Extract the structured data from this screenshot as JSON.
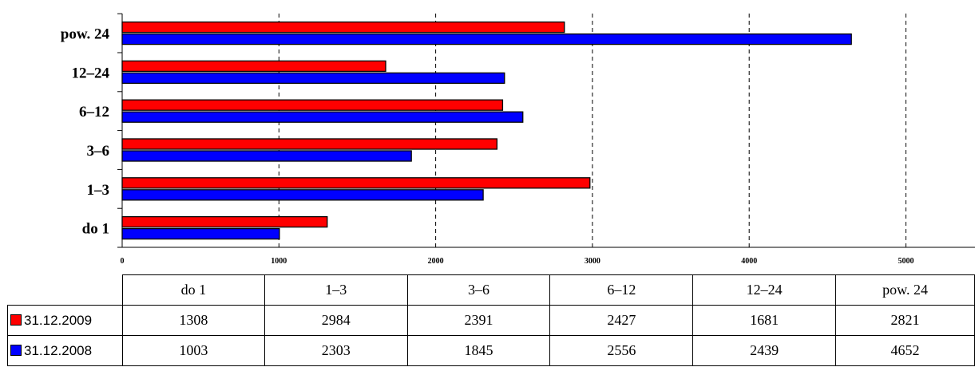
{
  "chart_data": {
    "type": "bar",
    "orientation": "horizontal",
    "categories": [
      "do 1",
      "1–3",
      "3–6",
      "6–12",
      "12–24",
      "pow. 24"
    ],
    "series": [
      {
        "name": "31.12.2009",
        "color": "#ff0000",
        "values": [
          1308,
          2984,
          2391,
          2427,
          1681,
          2821
        ]
      },
      {
        "name": "31.12.2008",
        "color": "#0000ff",
        "values": [
          1003,
          2303,
          1845,
          2556,
          2439,
          4652
        ]
      }
    ],
    "xlim": [
      0,
      5400
    ],
    "xticks": [
      0,
      1000,
      2000,
      3000,
      4000,
      5000
    ],
    "tick_labels": [
      "0",
      "1000",
      "2000",
      "3000",
      "4000",
      "5000"
    ],
    "grid": "vertical-dashed",
    "legend": "table-bottom"
  },
  "table": {
    "headers": [
      "do 1",
      "1–3",
      "3–6",
      "6–12",
      "12–24",
      "pow. 24"
    ],
    "rows": [
      {
        "label": "31.12.2009",
        "values": [
          "1308",
          "2984",
          "2391",
          "2427",
          "1681",
          "2821"
        ]
      },
      {
        "label": "31.12.2008",
        "values": [
          "1003",
          "2303",
          "1845",
          "2556",
          "2439",
          "4652"
        ]
      }
    ]
  }
}
